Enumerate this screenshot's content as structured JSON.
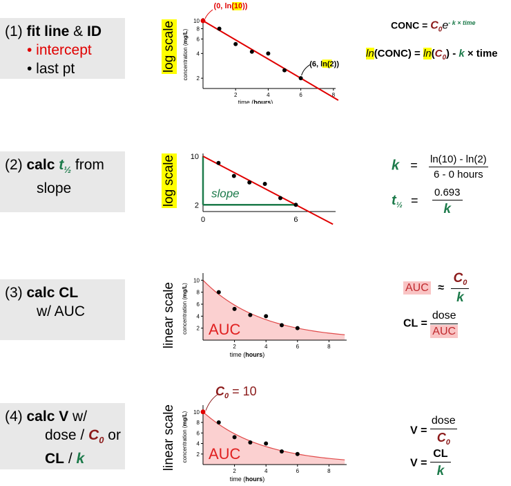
{
  "steps": [
    {
      "num": "(1) ",
      "bold": "fit line",
      "amp": " & ",
      "bold2": "ID",
      "bullet1": "• intercept",
      "bullet2": "• last pt"
    },
    {
      "num": "(2) ",
      "bold": "calc ",
      "t": "t",
      "half": "½",
      "rest": " from",
      "line2": "slope"
    },
    {
      "num": "(3) ",
      "bold": "calc CL",
      "line2": "w/ AUC"
    },
    {
      "num": "(4) ",
      "bold": "calc V",
      "rest": " w/",
      "line2a": "dose / ",
      "c0": "C",
      "c0sub": "0",
      "line2b": " or",
      "line3a": "CL",
      "line3b": " / ",
      "k": "k"
    }
  ],
  "tags": {
    "log": "log scale",
    "linear": "linear scale"
  },
  "chart_data": [
    {
      "type": "scatter",
      "scale": "log",
      "ylabel": "concentration (mg/L)",
      "xlabel": "time (hours)",
      "x": [
        1,
        2,
        3,
        4,
        5,
        6
      ],
      "y": [
        8,
        5.2,
        4.2,
        4.0,
        2.5,
        2.0
      ],
      "yticks": [
        "10",
        "8",
        "6",
        "4",
        "2"
      ],
      "xticks": [
        "2",
        "4",
        "6",
        "8"
      ],
      "annot1": "(0, ",
      "annot1hl": "ln",
      "annot1b": "(10))",
      "annot2": "(6, ",
      "annot2hl": "ln",
      "annot2b": "(2))"
    },
    {
      "type": "scatter",
      "scale": "log",
      "x": [
        1,
        2,
        3,
        4,
        5,
        6
      ],
      "y": [
        8,
        5.2,
        4.2,
        4.0,
        2.5,
        2.0
      ],
      "yticks": [
        "10",
        "2"
      ],
      "xticks": [
        "0",
        "6"
      ],
      "slope_label": "slope"
    },
    {
      "type": "area",
      "scale": "linear",
      "ylabel": "concentration (mg/L)",
      "xlabel": "time (hours)",
      "x": [
        1,
        2,
        3,
        4,
        5,
        6
      ],
      "y": [
        8,
        5.2,
        4.2,
        4.0,
        2.5,
        2.0
      ],
      "yticks": [
        "10",
        "8",
        "6",
        "4",
        "2"
      ],
      "xticks": [
        "2",
        "4",
        "6",
        "8"
      ],
      "area_label": "AUC"
    },
    {
      "type": "area",
      "scale": "linear",
      "ylabel": "concentration (mg/L)",
      "xlabel": "time (hours)",
      "x": [
        1,
        2,
        3,
        4,
        5,
        6
      ],
      "y": [
        8,
        5.2,
        4.2,
        4.0,
        2.5,
        2.0
      ],
      "yticks": [
        "10",
        "8",
        "6",
        "4",
        "2"
      ],
      "xticks": [
        "2",
        "4",
        "6",
        "8"
      ],
      "area_label": "AUC",
      "c0": "C",
      "c0sub": "0",
      "c0val": " = 10"
    }
  ],
  "eq": {
    "conc": "CONC = ",
    "c": "C",
    "sub0": "0",
    "e": "e",
    "sup": "- k × time",
    "ln": "ln",
    "lnconc": "(CONC) = ",
    "ln2": "ln",
    "lnc": "(",
    "lnc2": ") - ",
    "k": "k",
    "times": " × time",
    "k_eq": "k",
    "k_num": "ln(10) - ln(2)",
    "k_den": "6 - 0 hours",
    "t": "t",
    "half": "½",
    "t_num": "0.693",
    "t_den": "k",
    "auc": "AUC",
    "approx": "≈",
    "auc_num_c": "C",
    "auc_num_sub": "0",
    "auc_den": "k",
    "cl": "CL = ",
    "cl_num": "dose",
    "cl_den": "AUC",
    "v": "V = ",
    "v_num": "dose",
    "v_den_c": "C",
    "v_den_sub": "0",
    "v2": "V = ",
    "v2_num": "CL",
    "v2_den": "k",
    "eqsign": "="
  }
}
